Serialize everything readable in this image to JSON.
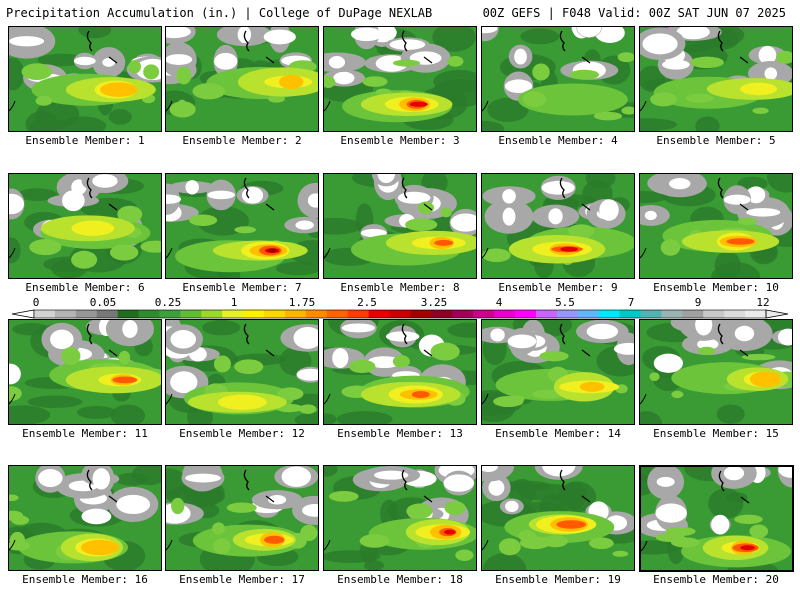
{
  "header": {
    "left": "Precipitation Accumulation (in.) | College of DuPage NEXLAB",
    "right": "00Z GEFS | F048 Valid: 00Z SAT JUN 07 2025"
  },
  "colorbar": {
    "tick_labels": [
      "0",
      "0.05",
      "0.25",
      "1",
      "1.75",
      "2.5",
      "3.25",
      "4",
      "5.5",
      "7",
      "9",
      "12"
    ],
    "colors": [
      "#d2d2d2",
      "#b4b4b4",
      "#969696",
      "#787878",
      "#1e6e1e",
      "#2e8b2e",
      "#3ca03c",
      "#5fbe32",
      "#9bd82d",
      "#e6f02d",
      "#fff000",
      "#ffd700",
      "#ffb400",
      "#ff8c00",
      "#ff6400",
      "#ff3c00",
      "#e60000",
      "#c80000",
      "#a00000",
      "#8c0028",
      "#a0005a",
      "#c8008c",
      "#e600c8",
      "#ff00ff",
      "#c864ff",
      "#9696ff",
      "#64b4ff",
      "#00e6ff",
      "#00c8c8",
      "#50b4b4",
      "#9ab4b4",
      "#a0a0a0",
      "#c8c8c8",
      "#dcdcdc",
      "#ebebeb"
    ]
  },
  "members": [
    {
      "label": "Ensemble Member: 1",
      "max": "1.75",
      "selected": false
    },
    {
      "label": "Ensemble Member: 2",
      "max": "1.75",
      "selected": false
    },
    {
      "label": "Ensemble Member: 3",
      "max": "3.25",
      "selected": false
    },
    {
      "label": "Ensemble Member: 4",
      "max": "0.25",
      "selected": false
    },
    {
      "label": "Ensemble Member: 5",
      "max": "1.00",
      "selected": false
    },
    {
      "label": "Ensemble Member: 6",
      "max": "1.00",
      "selected": false
    },
    {
      "label": "Ensemble Member: 7",
      "max": "4.00",
      "selected": false
    },
    {
      "label": "Ensemble Member: 8",
      "max": "2.50",
      "selected": false
    },
    {
      "label": "Ensemble Member: 9",
      "max": "3.50",
      "selected": false
    },
    {
      "label": "Ensemble Member: 10",
      "max": "2.50",
      "selected": false
    },
    {
      "label": "Ensemble Member: 11",
      "max": "2.50",
      "selected": false
    },
    {
      "label": "Ensemble Member: 12",
      "max": "1.00",
      "selected": false
    },
    {
      "label": "Ensemble Member: 13",
      "max": "2.50",
      "selected": false
    },
    {
      "label": "Ensemble Member: 14",
      "max": "1.75",
      "selected": false
    },
    {
      "label": "Ensemble Member: 15",
      "max": "1.75",
      "selected": false
    },
    {
      "label": "Ensemble Member: 16",
      "max": "1.75",
      "selected": false
    },
    {
      "label": "Ensemble Member: 17",
      "max": "2.50",
      "selected": false
    },
    {
      "label": "Ensemble Member: 18",
      "max": "3.25",
      "selected": false
    },
    {
      "label": "Ensemble Member: 19",
      "max": "2.50",
      "selected": false
    },
    {
      "label": "Ensemble Member: 20",
      "max": "3.25",
      "selected": true
    }
  ]
}
